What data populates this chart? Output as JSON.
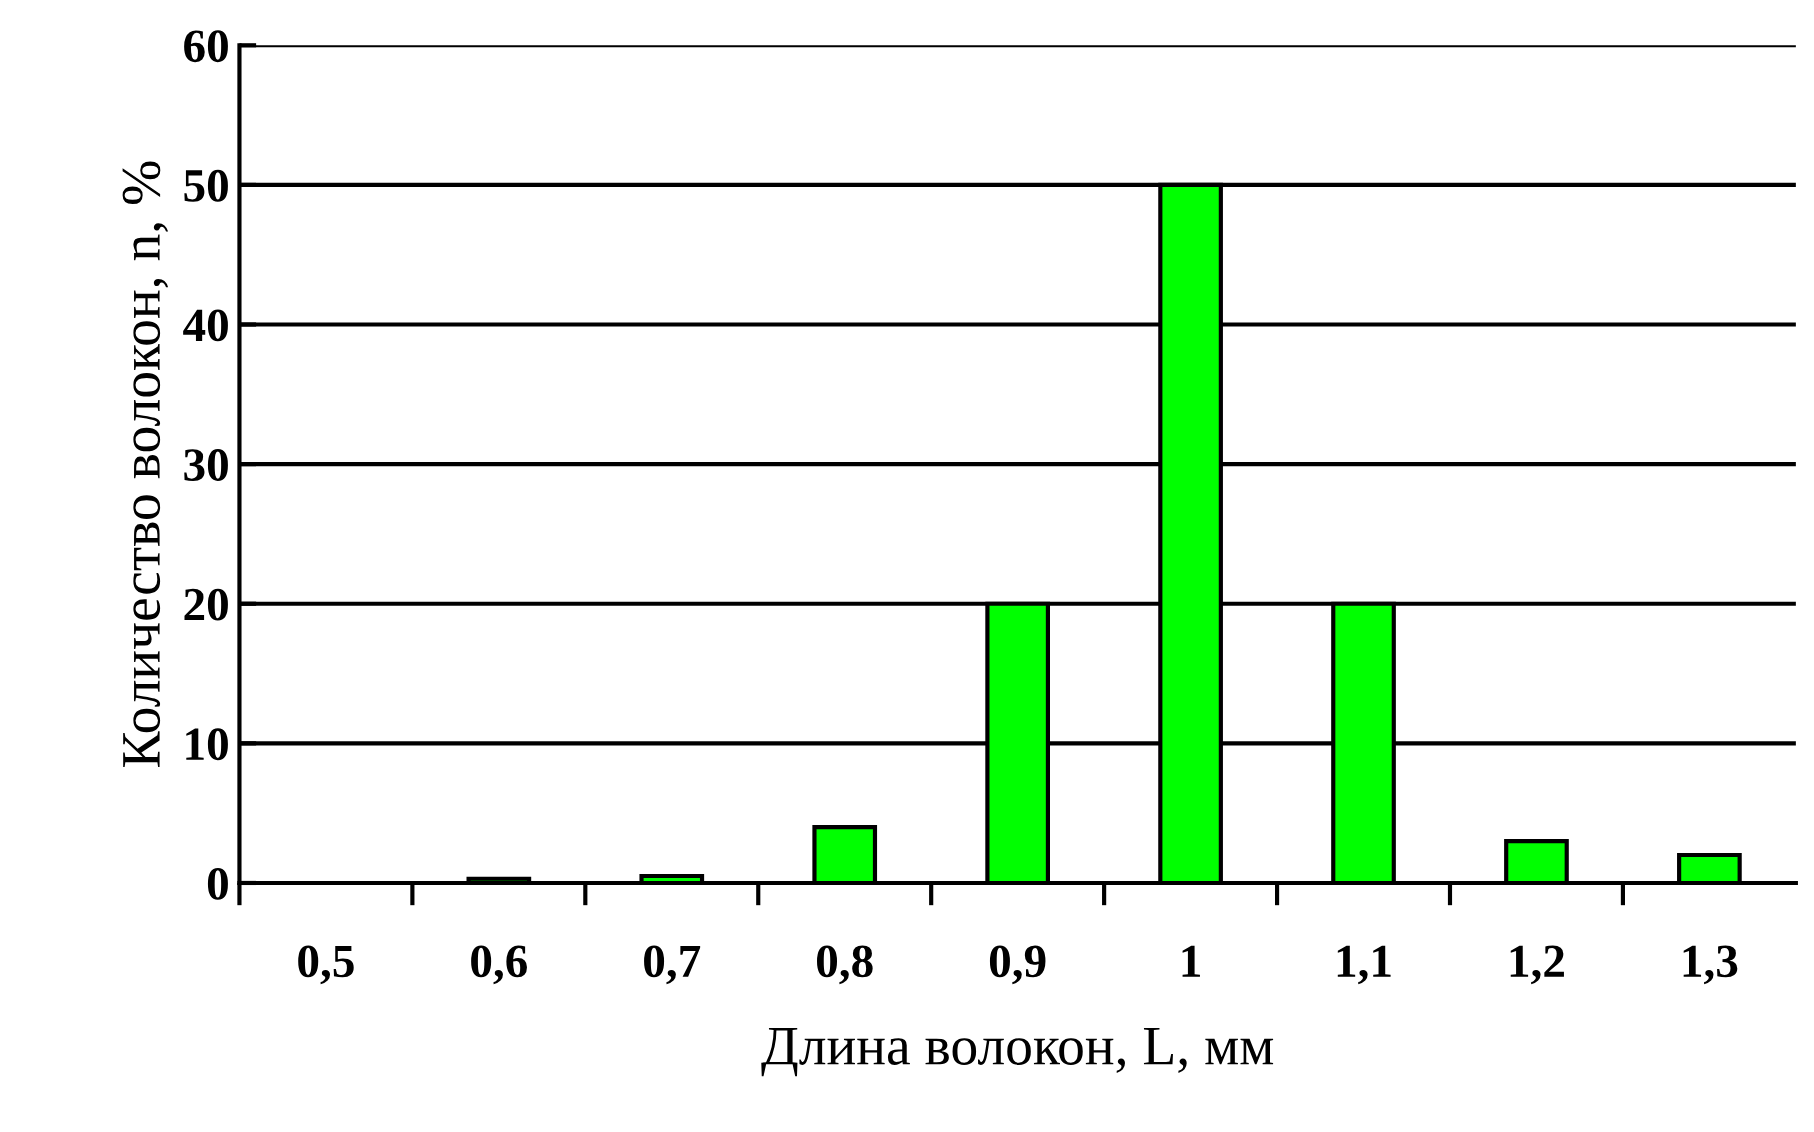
{
  "chart_data": {
    "type": "bar",
    "xlabel": "Длина волокон, L, мм",
    "ylabel": "Количество волокон, n, %",
    "categories": [
      "0,5",
      "0,6",
      "0,7",
      "0,8",
      "0,9",
      "1",
      "1,1",
      "1,2",
      "1,3"
    ],
    "values": [
      0,
      0.3,
      0.5,
      4,
      20,
      50,
      20,
      3,
      2
    ],
    "color": "#00ff00",
    "ylim": [
      0,
      60
    ],
    "yticks": [
      0,
      10,
      20,
      30,
      40,
      50,
      60
    ],
    "grid": "y",
    "legend": false
  }
}
